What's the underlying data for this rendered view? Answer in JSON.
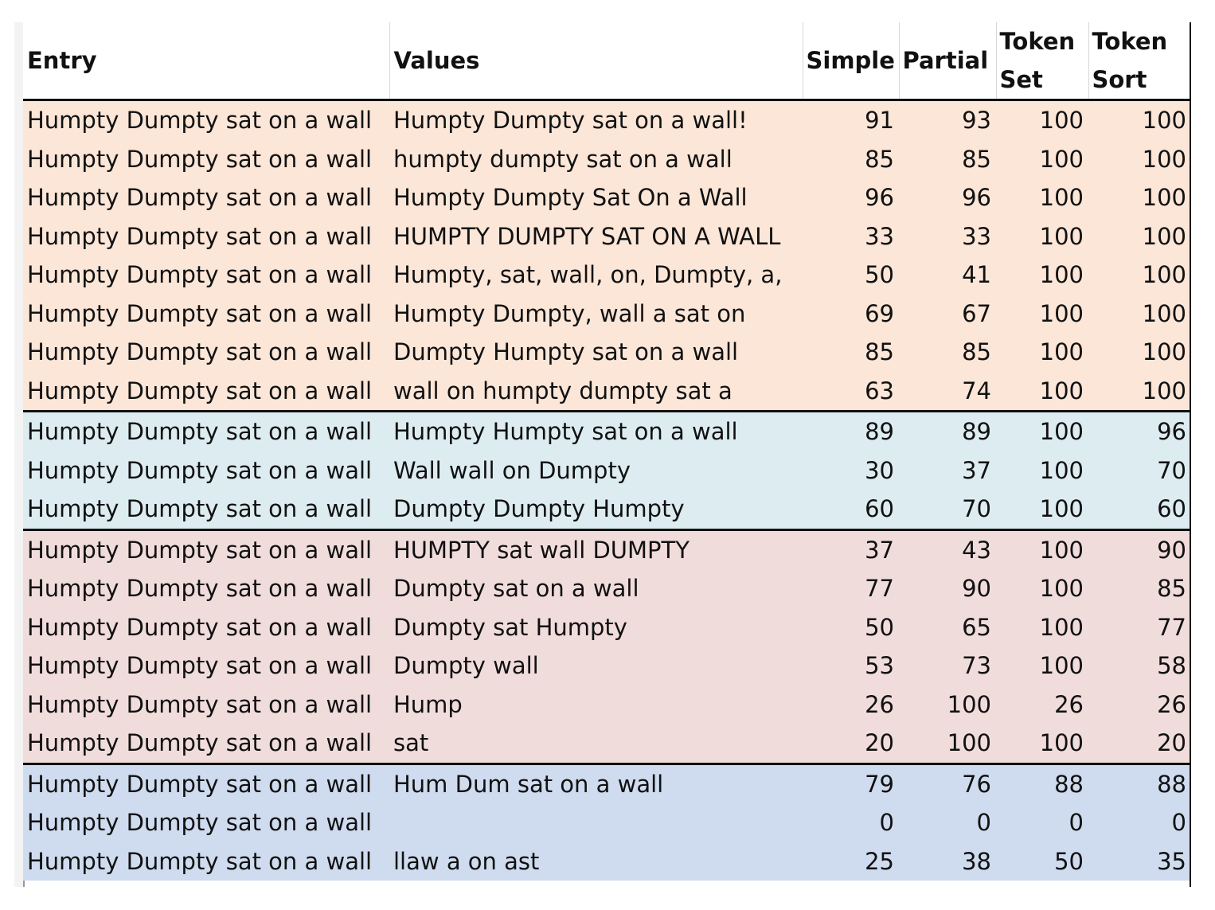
{
  "headers": {
    "entry": "Entry",
    "values": "Values",
    "simple": "Simple",
    "partial": "Partial",
    "token_set_1": "Token",
    "token_set_2": "Set",
    "token_sort_1": "Token",
    "token_sort_2": "Sort"
  },
  "group_colors": {
    "g1": "#fbe6d8",
    "g2": "#ddecf1",
    "g3": "#f1dcdc",
    "g4": "#cfdbef"
  },
  "rows": [
    {
      "group": "g1",
      "entry": "Humpty Dumpty sat on a wall",
      "value": "Humpty Dumpty sat on a wall!",
      "simple": "91",
      "partial": "93",
      "token_set": "100",
      "token_sort": "100"
    },
    {
      "group": "g1",
      "entry": "Humpty Dumpty sat on a wall",
      "value": "humpty dumpty sat on a wall",
      "simple": "85",
      "partial": "85",
      "token_set": "100",
      "token_sort": "100"
    },
    {
      "group": "g1",
      "entry": "Humpty Dumpty sat on a wall",
      "value": "Humpty Dumpty Sat On a Wall",
      "simple": "96",
      "partial": "96",
      "token_set": "100",
      "token_sort": "100"
    },
    {
      "group": "g1",
      "entry": "Humpty Dumpty sat on a wall",
      "value": "HUMPTY DUMPTY SAT ON A WALL",
      "simple": "33",
      "partial": "33",
      "token_set": "100",
      "token_sort": "100"
    },
    {
      "group": "g1",
      "entry": "Humpty Dumpty sat on a wall",
      "value": "Humpty, sat, wall, on, Dumpty, a,",
      "simple": "50",
      "partial": "41",
      "token_set": "100",
      "token_sort": "100"
    },
    {
      "group": "g1",
      "entry": "Humpty Dumpty sat on a wall",
      "value": "Humpty Dumpty, wall a sat on",
      "simple": "69",
      "partial": "67",
      "token_set": "100",
      "token_sort": "100"
    },
    {
      "group": "g1",
      "entry": "Humpty Dumpty sat on a wall",
      "value": "Dumpty Humpty sat on a wall",
      "simple": "85",
      "partial": "85",
      "token_set": "100",
      "token_sort": "100"
    },
    {
      "group": "g1",
      "entry": "Humpty Dumpty sat on a wall",
      "value": "wall on humpty dumpty sat a",
      "simple": "63",
      "partial": "74",
      "token_set": "100",
      "token_sort": "100"
    },
    {
      "group": "g2",
      "entry": "Humpty Dumpty sat on a wall",
      "value": "Humpty Humpty sat on a wall",
      "simple": "89",
      "partial": "89",
      "token_set": "100",
      "token_sort": "96"
    },
    {
      "group": "g2",
      "entry": "Humpty Dumpty sat on a wall",
      "value": "Wall wall on Dumpty",
      "simple": "30",
      "partial": "37",
      "token_set": "100",
      "token_sort": "70"
    },
    {
      "group": "g2",
      "entry": "Humpty Dumpty sat on a wall",
      "value": "Dumpty Dumpty Humpty",
      "simple": "60",
      "partial": "70",
      "token_set": "100",
      "token_sort": "60"
    },
    {
      "group": "g3",
      "entry": "Humpty Dumpty sat on a wall",
      "value": "HUMPTY sat wall DUMPTY",
      "simple": "37",
      "partial": "43",
      "token_set": "100",
      "token_sort": "90"
    },
    {
      "group": "g3",
      "entry": "Humpty Dumpty sat on a wall",
      "value": "Dumpty sat on a wall",
      "simple": "77",
      "partial": "90",
      "token_set": "100",
      "token_sort": "85"
    },
    {
      "group": "g3",
      "entry": "Humpty Dumpty sat on a wall",
      "value": "Dumpty sat Humpty",
      "simple": "50",
      "partial": "65",
      "token_set": "100",
      "token_sort": "77"
    },
    {
      "group": "g3",
      "entry": "Humpty Dumpty sat on a wall",
      "value": "Dumpty wall",
      "simple": "53",
      "partial": "73",
      "token_set": "100",
      "token_sort": "58"
    },
    {
      "group": "g3",
      "entry": "Humpty Dumpty sat on a wall",
      "value": "Hump",
      "simple": "26",
      "partial": "100",
      "token_set": "26",
      "token_sort": "26"
    },
    {
      "group": "g3",
      "entry": "Humpty Dumpty sat on a wall",
      "value": "sat",
      "simple": "20",
      "partial": "100",
      "token_set": "100",
      "token_sort": "20"
    },
    {
      "group": "g4",
      "entry": "Humpty Dumpty sat on a wall",
      "value": "Hum Dum sat on a wall",
      "simple": "79",
      "partial": "76",
      "token_set": "88",
      "token_sort": "88"
    },
    {
      "group": "g4",
      "entry": "Humpty Dumpty sat on a wall",
      "value": "",
      "simple": "0",
      "partial": "0",
      "token_set": "0",
      "token_sort": "0"
    },
    {
      "group": "g4",
      "entry": "Humpty Dumpty sat on a wall",
      "value": "llaw a on ast",
      "simple": "25",
      "partial": "38",
      "token_set": "50",
      "token_sort": "35"
    }
  ]
}
